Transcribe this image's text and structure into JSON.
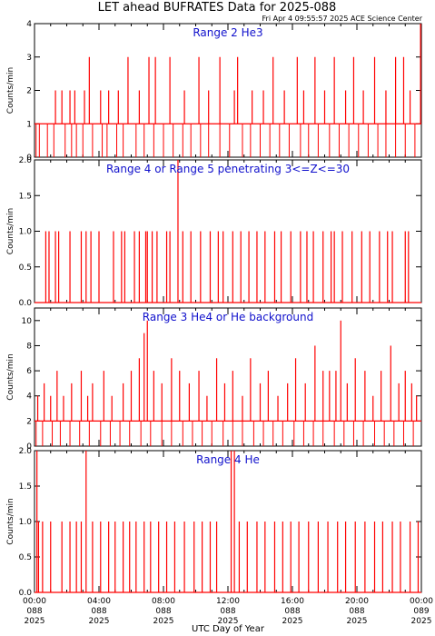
{
  "chart_data": {
    "type": "line",
    "title": "LET ahead BUFRATES Data for 2025-088",
    "subtitle": "Fri Apr  4 09:55:57 2025 ACE Science Center",
    "xlabel": "UTC Day of Year",
    "line_color": "#ff0000",
    "label_color": "#1111cc",
    "x_ticks": [
      {
        "time": "00:00",
        "doy": "088",
        "year": "2025"
      },
      {
        "time": "04:00",
        "doy": "088",
        "year": "2025"
      },
      {
        "time": "08:00",
        "doy": "088",
        "year": "2025"
      },
      {
        "time": "12:00",
        "doy": "088",
        "year": "2025"
      },
      {
        "time": "16:00",
        "doy": "088",
        "year": "2025"
      },
      {
        "time": "20:00",
        "doy": "088",
        "year": "2025"
      },
      {
        "time": "00:00",
        "doy": "089",
        "year": "2025"
      }
    ],
    "xlim_hours": [
      0,
      24
    ],
    "panels": [
      {
        "label": "Range 2 He3",
        "ylabel": "Counts/min",
        "ylim": [
          0,
          4
        ],
        "yticks": [
          0,
          1,
          2,
          3,
          4
        ],
        "baseline": 1,
        "zeros": [
          0.1,
          0.3,
          0.8,
          1.2,
          1.9,
          2.3,
          2.6,
          3.0,
          3.6,
          4.2,
          4.5,
          5.1,
          5.5,
          6.3,
          6.8,
          7.4,
          8.0,
          8.6,
          9.2,
          9.7,
          10.3,
          10.8,
          11.5,
          12.1,
          12.9,
          13.4,
          14.0,
          14.6,
          15.2,
          15.8,
          16.5,
          17.0,
          17.6,
          18.3,
          18.9,
          19.5,
          20.1,
          20.7,
          21.3,
          21.8,
          22.4,
          23.0,
          23.6
        ],
        "spikes": [
          [
            1.3,
            2
          ],
          [
            1.7,
            2
          ],
          [
            2.2,
            2
          ],
          [
            2.5,
            2
          ],
          [
            3.1,
            2
          ],
          [
            3.4,
            3
          ],
          [
            4.1,
            2
          ],
          [
            4.6,
            2
          ],
          [
            5.2,
            2
          ],
          [
            5.8,
            3
          ],
          [
            6.5,
            2
          ],
          [
            7.1,
            3
          ],
          [
            7.5,
            3
          ],
          [
            8.4,
            3
          ],
          [
            9.3,
            2
          ],
          [
            10.2,
            3
          ],
          [
            10.8,
            2
          ],
          [
            11.5,
            3
          ],
          [
            12.4,
            2
          ],
          [
            12.6,
            3
          ],
          [
            13.5,
            2
          ],
          [
            14.2,
            2
          ],
          [
            14.8,
            3
          ],
          [
            15.5,
            2
          ],
          [
            16.3,
            3
          ],
          [
            16.7,
            2
          ],
          [
            17.4,
            3
          ],
          [
            18.0,
            2
          ],
          [
            18.6,
            3
          ],
          [
            19.3,
            2
          ],
          [
            19.8,
            3
          ],
          [
            20.4,
            2
          ],
          [
            21.1,
            3
          ],
          [
            21.8,
            2
          ],
          [
            22.4,
            3
          ],
          [
            22.9,
            3
          ],
          [
            23.3,
            2
          ],
          [
            23.95,
            4
          ]
        ]
      },
      {
        "label": "Range 4 or Range 5 penetrating 3<=Z<=30",
        "ylabel": "Counts/min",
        "ylim": [
          0,
          2
        ],
        "yticks": [
          0.0,
          0.5,
          1.0,
          1.5,
          2.0
        ],
        "baseline": 0,
        "zeros": [],
        "spikes": [
          [
            0.7,
            1
          ],
          [
            0.9,
            1
          ],
          [
            1.3,
            1
          ],
          [
            1.5,
            1
          ],
          [
            2.2,
            1
          ],
          [
            2.9,
            1
          ],
          [
            3.2,
            1
          ],
          [
            3.5,
            1
          ],
          [
            4.0,
            1
          ],
          [
            4.9,
            1
          ],
          [
            5.4,
            1
          ],
          [
            5.6,
            1
          ],
          [
            6.2,
            1
          ],
          [
            6.5,
            1
          ],
          [
            6.9,
            1
          ],
          [
            7.0,
            1
          ],
          [
            7.3,
            1
          ],
          [
            7.6,
            1
          ],
          [
            8.2,
            1
          ],
          [
            8.4,
            1
          ],
          [
            8.9,
            2
          ],
          [
            9.2,
            1
          ],
          [
            9.7,
            1
          ],
          [
            10.3,
            1
          ],
          [
            10.9,
            1
          ],
          [
            11.4,
            1
          ],
          [
            11.7,
            1
          ],
          [
            12.3,
            1
          ],
          [
            12.8,
            1
          ],
          [
            13.3,
            1
          ],
          [
            13.8,
            1
          ],
          [
            14.3,
            1
          ],
          [
            14.9,
            1
          ],
          [
            15.3,
            1
          ],
          [
            15.9,
            1
          ],
          [
            16.5,
            1
          ],
          [
            16.9,
            1
          ],
          [
            17.3,
            1
          ],
          [
            17.9,
            1
          ],
          [
            18.4,
            1
          ],
          [
            18.6,
            1
          ],
          [
            19.1,
            1
          ],
          [
            19.7,
            1
          ],
          [
            20.3,
            1
          ],
          [
            20.8,
            1
          ],
          [
            21.4,
            1
          ],
          [
            21.9,
            1
          ],
          [
            22.2,
            1
          ],
          [
            23.0,
            1
          ],
          [
            23.2,
            1
          ]
        ]
      },
      {
        "label": "Range 3 He4 or He background",
        "ylabel": "Counts/min",
        "ylim": [
          0,
          11
        ],
        "yticks": [
          0,
          2,
          4,
          6,
          8,
          10
        ],
        "baseline": 2,
        "zeros": [
          0.1,
          0.5,
          1.1,
          1.6,
          2.2,
          2.8,
          3.4,
          4.1,
          4.7,
          5.3,
          5.9,
          6.6,
          7.2,
          7.9,
          8.5,
          9.2,
          9.8,
          10.4,
          11.0,
          11.7,
          12.3,
          12.9,
          13.6,
          14.2,
          14.8,
          15.4,
          16.1,
          16.7,
          17.3,
          17.9,
          18.6,
          19.2,
          19.8,
          20.4,
          21.1,
          21.7,
          22.3,
          22.9,
          23.5
        ],
        "spikes": [
          [
            0.2,
            4
          ],
          [
            0.6,
            5
          ],
          [
            1.0,
            4
          ],
          [
            1.4,
            6
          ],
          [
            1.8,
            4
          ],
          [
            2.3,
            5
          ],
          [
            2.9,
            6
          ],
          [
            3.3,
            4
          ],
          [
            3.6,
            5
          ],
          [
            4.3,
            6
          ],
          [
            4.8,
            4
          ],
          [
            5.5,
            5
          ],
          [
            6.0,
            6
          ],
          [
            6.5,
            7
          ],
          [
            6.8,
            9
          ],
          [
            7.0,
            10
          ],
          [
            7.4,
            6
          ],
          [
            7.9,
            5
          ],
          [
            8.5,
            7
          ],
          [
            9.0,
            6
          ],
          [
            9.6,
            5
          ],
          [
            10.2,
            6
          ],
          [
            10.7,
            4
          ],
          [
            11.3,
            7
          ],
          [
            11.8,
            5
          ],
          [
            12.3,
            6
          ],
          [
            12.9,
            4
          ],
          [
            13.4,
            7
          ],
          [
            14.0,
            5
          ],
          [
            14.5,
            6
          ],
          [
            15.1,
            4
          ],
          [
            15.7,
            5
          ],
          [
            16.2,
            7
          ],
          [
            16.8,
            5
          ],
          [
            17.4,
            8
          ],
          [
            17.9,
            6
          ],
          [
            18.3,
            6
          ],
          [
            18.7,
            6
          ],
          [
            19.0,
            10
          ],
          [
            19.4,
            5
          ],
          [
            19.9,
            7
          ],
          [
            20.5,
            6
          ],
          [
            21.0,
            4
          ],
          [
            21.5,
            6
          ],
          [
            22.1,
            8
          ],
          [
            22.6,
            5
          ],
          [
            23.0,
            6
          ],
          [
            23.4,
            5
          ],
          [
            23.7,
            4
          ]
        ]
      },
      {
        "label": "Range 4 He",
        "ylabel": "Counts/min",
        "ylim": [
          0,
          2
        ],
        "yticks": [
          0.0,
          0.5,
          1.0,
          1.5,
          2.0
        ],
        "baseline": 0,
        "zeros": [],
        "spikes": [
          [
            0.15,
            2
          ],
          [
            0.25,
            1
          ],
          [
            0.5,
            1
          ],
          [
            1.0,
            1
          ],
          [
            1.7,
            1
          ],
          [
            2.2,
            1
          ],
          [
            2.6,
            1
          ],
          [
            2.9,
            1
          ],
          [
            3.2,
            2
          ],
          [
            3.6,
            1
          ],
          [
            4.1,
            1
          ],
          [
            4.6,
            1
          ],
          [
            5.0,
            1
          ],
          [
            5.5,
            1
          ],
          [
            5.9,
            1
          ],
          [
            6.3,
            1
          ],
          [
            6.8,
            1
          ],
          [
            7.2,
            1
          ],
          [
            7.7,
            1
          ],
          [
            8.2,
            1
          ],
          [
            8.7,
            1
          ],
          [
            9.3,
            1
          ],
          [
            9.9,
            1
          ],
          [
            10.4,
            1
          ],
          [
            10.9,
            1
          ],
          [
            11.3,
            1
          ],
          [
            12.2,
            2
          ],
          [
            12.4,
            2
          ],
          [
            12.7,
            1
          ],
          [
            13.2,
            1
          ],
          [
            13.8,
            1
          ],
          [
            14.3,
            1
          ],
          [
            14.9,
            1
          ],
          [
            15.4,
            1
          ],
          [
            15.9,
            1
          ],
          [
            16.4,
            1
          ],
          [
            17.0,
            1
          ],
          [
            17.6,
            1
          ],
          [
            18.2,
            1
          ],
          [
            18.8,
            1
          ],
          [
            19.3,
            1
          ],
          [
            19.9,
            1
          ],
          [
            20.5,
            1
          ],
          [
            21.1,
            1
          ],
          [
            21.6,
            1
          ],
          [
            22.2,
            1
          ],
          [
            22.7,
            1
          ],
          [
            23.3,
            1
          ],
          [
            23.8,
            1
          ]
        ]
      }
    ]
  }
}
